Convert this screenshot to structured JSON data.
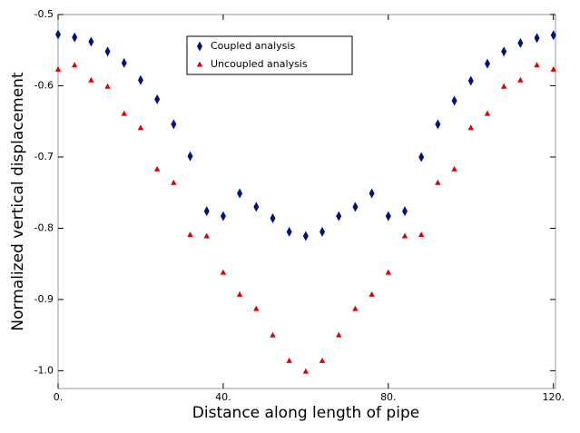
{
  "chart_data": {
    "type": "scatter",
    "xlabel": "Distance along length of pipe",
    "ylabel": "Normalized vertical displacement",
    "xlim": [
      0,
      120.5
    ],
    "ylim": [
      -1.025,
      -0.5
    ],
    "xticks": [
      {
        "value": 0,
        "label": "0."
      },
      {
        "value": 40,
        "label": "40."
      },
      {
        "value": 80,
        "label": "80."
      },
      {
        "value": 120,
        "label": "120."
      }
    ],
    "yticks": [
      -0.5,
      -0.6,
      -0.7,
      -0.8,
      -0.9,
      {
        "value": -1,
        "label": "-1.0"
      }
    ],
    "x": [
      0,
      4,
      8,
      12,
      16,
      20,
      24,
      28,
      32,
      36,
      40,
      44,
      48,
      52,
      56,
      60,
      64,
      68,
      72,
      76,
      80,
      84,
      88,
      92,
      96,
      100,
      104,
      108,
      112,
      116,
      120
    ],
    "series": [
      {
        "name": "Coupled analysis",
        "color": "#00137f",
        "marker": "diamond",
        "values": [
          -0.528,
          -0.532,
          -0.538,
          -0.552,
          -0.568,
          -0.592,
          -0.619,
          -0.654,
          -0.699,
          -0.776,
          -0.783,
          -0.751,
          -0.77,
          -0.786,
          -0.805,
          -0.811,
          -0.805,
          -0.783,
          -0.77,
          -0.751,
          -0.783,
          -0.776,
          -0.7,
          -0.654,
          -0.621,
          -0.593,
          -0.569,
          -0.552,
          -0.54,
          -0.533,
          -0.529
        ]
      },
      {
        "name": "Uncoupled analysis",
        "color": "#e00000",
        "marker": "triangle",
        "values": [
          -0.577,
          -0.571,
          -0.592,
          -0.601,
          -0.639,
          -0.659,
          -0.717,
          -0.736,
          -0.809,
          -0.811,
          -0.862,
          -0.893,
          -0.913,
          -0.95,
          -0.986,
          -1.001,
          -0.986,
          -0.95,
          -0.913,
          -0.893,
          -0.862,
          -0.811,
          -0.809,
          -0.736,
          -0.717,
          -0.659,
          -0.639,
          -0.601,
          -0.592,
          -0.571,
          -0.577
        ]
      }
    ]
  }
}
